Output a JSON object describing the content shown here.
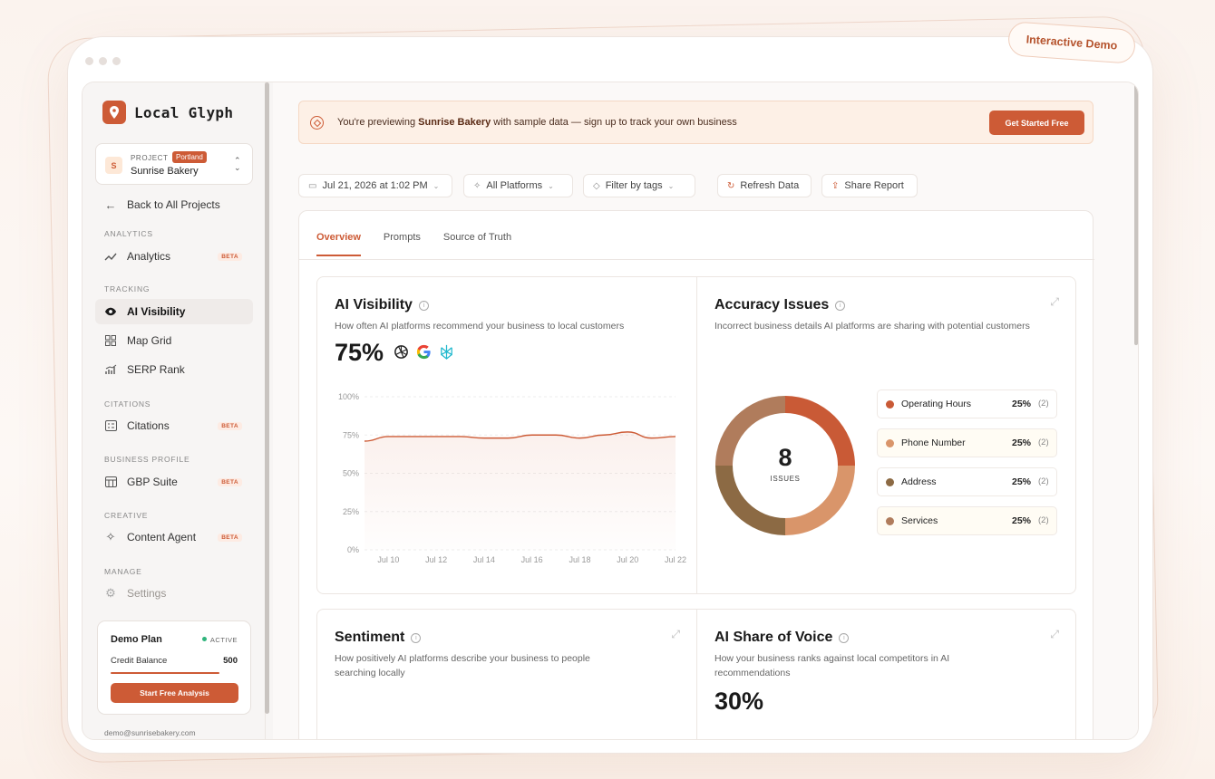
{
  "demo_badge": "Interactive Demo",
  "brand": {
    "name": "Local Glyph"
  },
  "project": {
    "label": "PROJECT",
    "tag": "Portland",
    "name": "Sunrise Bakery",
    "avatar": "S"
  },
  "sidebar": {
    "back": "Back to All Projects",
    "sections": {
      "analytics": "ANALYTICS",
      "tracking": "TRACKING",
      "citations": "CITATIONS",
      "business_profile": "BUSINESS PROFILE",
      "creative": "CREATIVE",
      "manage": "MANAGE"
    },
    "items": {
      "analytics": {
        "label": "Analytics",
        "badge": "BETA"
      },
      "ai_visibility": {
        "label": "AI Visibility"
      },
      "map_grid": {
        "label": "Map Grid"
      },
      "serp_rank": {
        "label": "SERP Rank"
      },
      "citations": {
        "label": "Citations",
        "badge": "BETA"
      },
      "gbp_suite": {
        "label": "GBP Suite",
        "badge": "BETA"
      },
      "content_agent": {
        "label": "Content Agent",
        "badge": "BETA"
      },
      "settings": {
        "label": "Settings"
      }
    },
    "plan": {
      "title": "Demo Plan",
      "status": "ACTIVE",
      "credit_label": "Credit Balance",
      "credit_value": "500",
      "cta": "Start Free Analysis"
    },
    "email": "demo@sunrisebakery.com"
  },
  "banner": {
    "prefix": "You're previewing ",
    "business": "Sunrise Bakery",
    "suffix": " with sample data — sign up to track your own business",
    "cta": "Get Started Free"
  },
  "filters": {
    "date": "Jul 21, 2026 at 1:02 PM",
    "platforms": "All Platforms",
    "tags": "Filter by tags",
    "refresh": "Refresh Data",
    "share": "Share Report"
  },
  "tabs": [
    "Overview",
    "Prompts",
    "Source of Truth"
  ],
  "ai_visibility": {
    "title": "AI Visibility",
    "description": "How often AI platforms recommend your business to local customers",
    "value": "75%"
  },
  "accuracy": {
    "title": "Accuracy Issues",
    "description": "Incorrect business details AI platforms are sharing with potential customers",
    "total": "8",
    "total_label": "ISSUES",
    "items": [
      {
        "name": "Operating Hours",
        "percent": "25%",
        "count": "(2)",
        "color": "#c95a36"
      },
      {
        "name": "Phone Number",
        "percent": "25%",
        "count": "(2)",
        "color": "#d9956a"
      },
      {
        "name": "Address",
        "percent": "25%",
        "count": "(2)",
        "color": "#8c6a44"
      },
      {
        "name": "Services",
        "percent": "25%",
        "count": "(2)",
        "color": "#b07c5c"
      }
    ]
  },
  "sentiment": {
    "title": "Sentiment",
    "description": "How positively AI platforms describe your business to people searching locally"
  },
  "share_of_voice": {
    "title": "AI Share of Voice",
    "description": "How your business ranks against local competitors in AI recommendations",
    "value": "30%"
  },
  "chart_data": {
    "type": "area",
    "x": [
      "Jul 9",
      "Jul 10",
      "Jul 11",
      "Jul 12",
      "Jul 13",
      "Jul 14",
      "Jul 15",
      "Jul 16",
      "Jul 17",
      "Jul 18",
      "Jul 19",
      "Jul 20",
      "Jul 21",
      "Jul 22"
    ],
    "tick_labels": [
      "Jul 10",
      "Jul 12",
      "Jul 14",
      "Jul 16",
      "Jul 18",
      "Jul 20",
      "Jul 22"
    ],
    "y_tick_labels": [
      "100%",
      "75%",
      "50%",
      "25%",
      "0%"
    ],
    "series": [
      {
        "values": [
          71,
          74,
          74,
          74,
          74,
          73,
          73,
          75,
          75,
          73,
          75,
          77,
          73,
          74
        ]
      }
    ],
    "ylim": [
      0,
      100
    ],
    "grid": true,
    "color": "#cd5b36"
  }
}
